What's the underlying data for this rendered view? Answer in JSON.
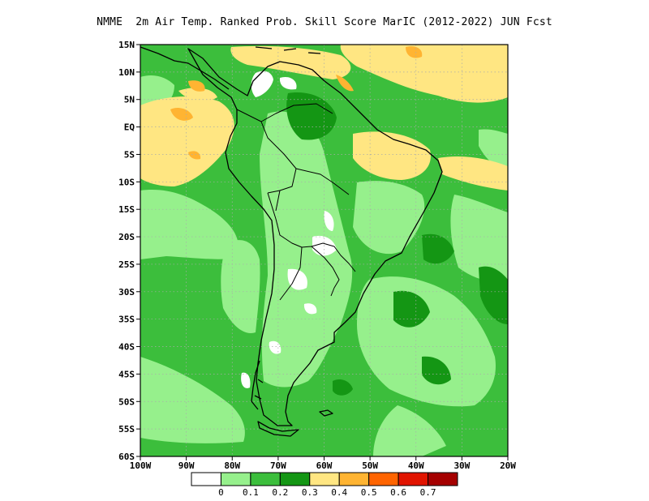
{
  "title": "NMME  2m Air Temp. Ranked Prob. Skill Score MarIC (2012-2022) JUN Fcst",
  "map": {
    "lon_range": [
      -100,
      -20
    ],
    "lat_range": [
      -60,
      15
    ],
    "lat_ticks": [
      "15N",
      "10N",
      "5N",
      "EQ",
      "5S",
      "10S",
      "15S",
      "20S",
      "25S",
      "30S",
      "35S",
      "40S",
      "45S",
      "50S",
      "55S",
      "60S"
    ],
    "lon_ticks": [
      "100W",
      "90W",
      "80W",
      "70W",
      "60W",
      "50W",
      "40W",
      "30W",
      "20W"
    ],
    "gridlines": "dotted",
    "base_color": "#3cbe3c"
  },
  "colorbar": {
    "colors": [
      "#ffffff",
      "#96f08c",
      "#3cbe3c",
      "#149614",
      "#ffe682",
      "#ffb432",
      "#ff6400",
      "#e11400",
      "#a50000"
    ],
    "labels": [
      "0",
      "0.1",
      "0.2",
      "0.3",
      "0.4",
      "0.5",
      "0.6",
      "0.7"
    ]
  }
}
